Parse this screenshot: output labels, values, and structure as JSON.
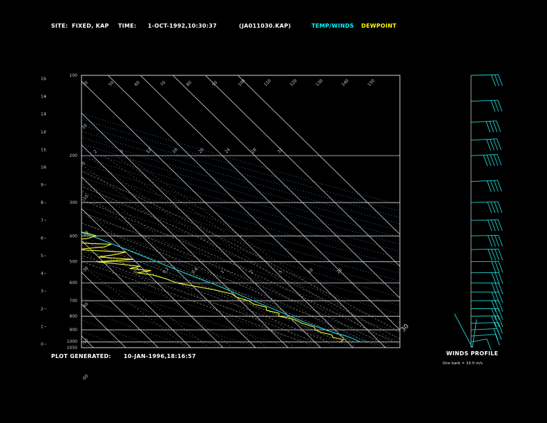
{
  "header": {
    "site_label": "SITE:",
    "site_value": "FIXED, KAP",
    "time_label": "TIME:",
    "time_value": "1-OCT-1992,10:30:37",
    "file": "(JA011030.KAP)",
    "legend_temp": "TEMP/WINDS",
    "legend_dew": "DEWPOINT"
  },
  "footer": {
    "plot_label": "PLOT GENERATED:",
    "plot_value": "10-JAN-1996,18:16:57",
    "winds_title": "WINDS PROFILE",
    "winds_note": "One barb = 10.0 m/s"
  },
  "colors": {
    "temp": "#22d6d6",
    "dew": "#ffff33",
    "header_temp": "#00ffff",
    "header_dew": "#ffff00",
    "isotherm": "#d8d8d8",
    "pressure_line": "#d8d8d8",
    "mixing_ratio": "#e0a860",
    "moist_adiabat": "#808080",
    "dry_adiabat": "#4a8fd8"
  },
  "chart_data": {
    "type": "line",
    "pressure_levels": [
      100,
      200,
      300,
      400,
      500,
      600,
      700,
      800,
      900,
      1000,
      1050
    ],
    "pressure_tick_labels": [
      "100",
      "200",
      "300",
      "400",
      "500",
      "600",
      "700",
      "800",
      "900",
      "1000",
      "1050"
    ],
    "height_ticks": [
      "0",
      "1",
      "2",
      "3",
      "4",
      "5",
      "6",
      "7",
      "8",
      "9",
      "10",
      "11",
      "12",
      "13",
      "14",
      "15"
    ],
    "temp_top_labels": [
      "-110",
      "-100",
      "-90",
      "-80",
      "-70",
      "-60",
      "-50",
      "-40"
    ],
    "temp_right_labels": [
      "-30",
      "-20",
      "-10",
      "0",
      "10",
      "20",
      "30"
    ],
    "dry_adiabat_labels": [
      "30",
      "50",
      "60",
      "70",
      "80",
      "90",
      "100",
      "110",
      "120",
      "130",
      "140",
      "150",
      "10",
      "0",
      "-10",
      "-20",
      "-30",
      "-40",
      "-50",
      "-60"
    ],
    "mixing_ratio_labels": [
      "2",
      "8",
      "12",
      "16",
      "20",
      "24",
      "28",
      "32"
    ],
    "moist_labels": [
      "0.1",
      "0.2",
      "0.4",
      "1",
      "2",
      "5",
      "10",
      "20"
    ],
    "temperature": {
      "p": [
        1000,
        975,
        950,
        925,
        900,
        850,
        800,
        750,
        700,
        650,
        600,
        550,
        500,
        450,
        400,
        350,
        300,
        250,
        200,
        175,
        150,
        135,
        125,
        110,
        100
      ],
      "t": [
        14,
        13,
        11.5,
        9,
        7,
        3.5,
        0.5,
        -2.5,
        -6,
        -9.5,
        -13.5,
        -18.5,
        -23.5,
        -29,
        -35.5,
        -42,
        -49.5,
        -54,
        -56,
        -56.5,
        -58.5,
        -63,
        -67,
        -70,
        -72
      ]
    },
    "dewpoint": {
      "p": [
        1000,
        980,
        960,
        940,
        920,
        900,
        880,
        850,
        820,
        800,
        780,
        760,
        740,
        720,
        700,
        680,
        660,
        640,
        620,
        600,
        580,
        560,
        550,
        540,
        530,
        520,
        510,
        500,
        490,
        480,
        470,
        460,
        450,
        440,
        430,
        420,
        410,
        400,
        390,
        380,
        370,
        360,
        350,
        340,
        330,
        320,
        310,
        300,
        290,
        280,
        270,
        260,
        250,
        240,
        230,
        220,
        210,
        200,
        180,
        160,
        150,
        140,
        130,
        120,
        110,
        100
      ],
      "td": [
        8,
        9.5,
        7,
        7.5,
        5,
        4,
        4.5,
        2,
        0.5,
        -3,
        -2,
        -5,
        -4,
        -7,
        -7.5,
        -10,
        -10.5,
        -14,
        -19,
        -24,
        -26,
        -29,
        -33,
        -28,
        -34,
        -30,
        -36,
        -42,
        -30,
        -40,
        -34,
        -30,
        -45,
        -35,
        -32,
        -52,
        -38,
        -34,
        -36,
        -50,
        -52,
        -44,
        -60,
        -49,
        -53,
        -63,
        -58,
        -55,
        -62,
        -57,
        -62,
        -58,
        -60,
        -57,
        -59,
        -55,
        -59,
        -62,
        -66,
        -73,
        -79,
        -80,
        -80,
        -79,
        -78,
        -77
      ]
    },
    "winds": {
      "p": [
        1000,
        950,
        900,
        850,
        800,
        750,
        700,
        650,
        600,
        550,
        500,
        450,
        400,
        350,
        300,
        250,
        200,
        175,
        150,
        125,
        100
      ],
      "dir": [
        330,
        300,
        290,
        280,
        275,
        270,
        272,
        270,
        268,
        272,
        275,
        278,
        280,
        282,
        285,
        288,
        290,
        292,
        295,
        285,
        280
      ],
      "spd": [
        5,
        10,
        15,
        20,
        25,
        25,
        30,
        30,
        30,
        30,
        30,
        35,
        35,
        35,
        35,
        40,
        45,
        40,
        35,
        30,
        30
      ]
    }
  }
}
